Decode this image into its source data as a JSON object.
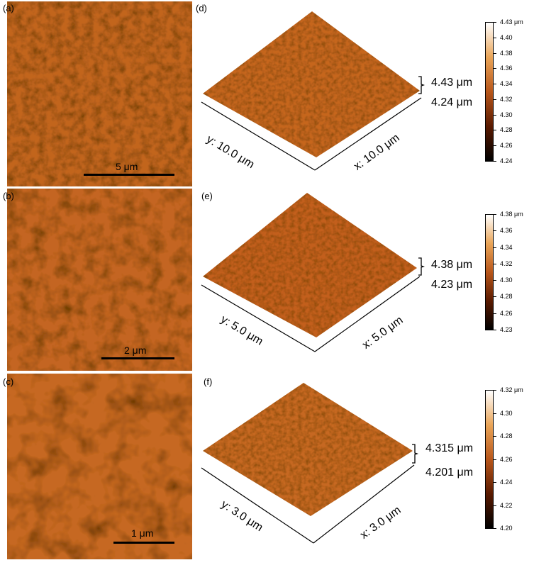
{
  "figure": {
    "panels_2d": [
      {
        "label": "(a)",
        "scalebar": "5 μm"
      },
      {
        "label": "(b)",
        "scalebar": "2 μm"
      },
      {
        "label": "(c)",
        "scalebar": "1 μm"
      }
    ],
    "panels_3d": [
      {
        "label": "(d)",
        "y_axis": "y: 10.0 μm",
        "x_axis": "x: 10.0 μm",
        "range_top": "4.43 μm",
        "range_bottom": "4.24 μm",
        "colorbar_ticks": [
          "4.43 μm",
          "4.40",
          "4.38",
          "4.36",
          "4.34",
          "4.32",
          "4.30",
          "4.28",
          "4.26",
          "4.24"
        ]
      },
      {
        "label": "(e)",
        "y_axis": "y: 5.0 μm",
        "x_axis": "x: 5.0 μm",
        "range_top": "4.38 μm",
        "range_bottom": "4.23 μm",
        "colorbar_ticks": [
          "4.38 μm",
          "4.36",
          "4.34",
          "4.32",
          "4.30",
          "4.28",
          "4.26",
          "4.23"
        ]
      },
      {
        "label": "(f)",
        "y_axis": "y: 3.0 μm",
        "x_axis": "x: 3.0 μm",
        "range_top": "4.315 μm",
        "range_bottom": "4.201 μm",
        "colorbar_ticks": [
          "4.32 μm",
          "4.30",
          "4.28",
          "4.26",
          "4.24",
          "4.22",
          "4.20"
        ]
      }
    ],
    "colors": {
      "dark": "#3a1200",
      "mid": "#c2651e",
      "light": "#f3c27a",
      "highlight": "#fff4dc"
    }
  }
}
